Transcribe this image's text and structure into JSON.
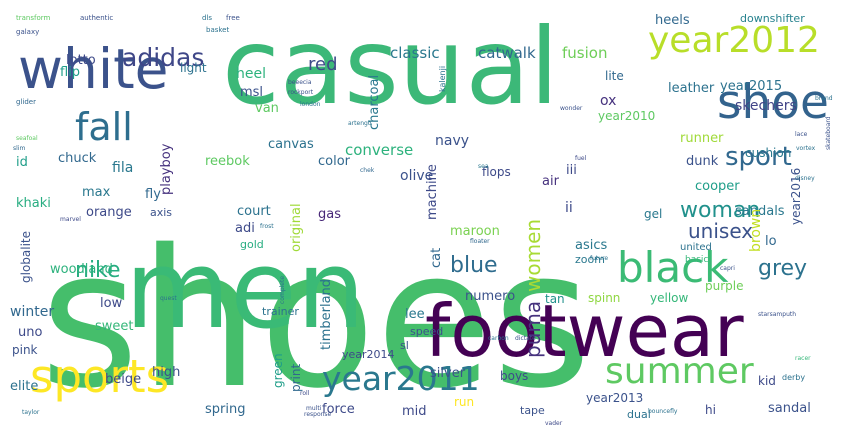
{
  "palette": {
    "background": "#ffffff",
    "dark_purple": "#440154",
    "indigo": "#3b528b",
    "blue": "#31688e",
    "teal": "#21918c",
    "green": "#35b779",
    "lime": "#90d743",
    "light_green": "#5ec962",
    "yellow": "#fde725"
  },
  "words": [
    {
      "text": "shoes",
      "color": "#45be6b"
    },
    {
      "text": "casual",
      "color": "#3cb878"
    },
    {
      "text": "men",
      "color": "#3aba76"
    },
    {
      "text": "footwear",
      "color": "#440154"
    },
    {
      "text": "white",
      "color": "#3b528b"
    },
    {
      "text": "shoe",
      "color": "#33638d"
    },
    {
      "text": "sports",
      "color": "#fde725"
    },
    {
      "text": "black",
      "color": "#3bbb75"
    },
    {
      "text": "fall",
      "color": "#2e6e8e"
    },
    {
      "text": "year2012",
      "color": "#b8de29"
    },
    {
      "text": "summer",
      "color": "#5ec962"
    },
    {
      "text": "year2011",
      "color": "#2a788e"
    },
    {
      "text": "sport",
      "color": "#31688e"
    },
    {
      "text": "adidas",
      "color": "#3f4788"
    },
    {
      "text": "woman",
      "color": "#21918c"
    },
    {
      "text": "grey",
      "color": "#2c728e"
    },
    {
      "text": "blue",
      "color": "#2f6c8e"
    },
    {
      "text": "nike",
      "color": "#27ad81"
    },
    {
      "text": "unisex",
      "color": "#3b528b"
    },
    {
      "text": "women",
      "color": "#a8db34"
    },
    {
      "text": "puma",
      "color": "#46327e"
    },
    {
      "text": "red",
      "color": "#3e4a89"
    },
    {
      "text": "classic",
      "color": "#2a788e"
    },
    {
      "text": "catwalk",
      "color": "#31688e"
    },
    {
      "text": "fusion",
      "color": "#6ece58"
    },
    {
      "text": "heels",
      "color": "#31688e"
    },
    {
      "text": "downshifter",
      "color": "#26828e"
    },
    {
      "text": "heel",
      "color": "#2db27d"
    },
    {
      "text": "lotto",
      "color": "#3e4a89"
    },
    {
      "text": "flip",
      "color": "#1f9e89"
    },
    {
      "text": "msl",
      "color": "#3b528b"
    },
    {
      "text": "light",
      "color": "#2c728e"
    },
    {
      "text": "lite",
      "color": "#31688e"
    },
    {
      "text": "ox",
      "color": "#46327e"
    },
    {
      "text": "leather",
      "color": "#2c728e"
    },
    {
      "text": "skechers",
      "color": "#414487"
    },
    {
      "text": "runner",
      "color": "#a0da39"
    },
    {
      "text": "year2015",
      "color": "#2c728e"
    },
    {
      "text": "van",
      "color": "#5ec962"
    },
    {
      "text": "max",
      "color": "#2a788e"
    },
    {
      "text": "fly",
      "color": "#31688e"
    },
    {
      "text": "converse",
      "color": "#2db27d"
    },
    {
      "text": "navy",
      "color": "#3b528b"
    },
    {
      "text": "reebok",
      "color": "#5ec962"
    },
    {
      "text": "canvas",
      "color": "#2c728e"
    },
    {
      "text": "charcoal",
      "color": "#2a788e"
    },
    {
      "text": "olive",
      "color": "#3b528b"
    },
    {
      "text": "year2010",
      "color": "#5ec962"
    },
    {
      "text": "air",
      "color": "#46327e"
    },
    {
      "text": "iii",
      "color": "#3e4a89"
    },
    {
      "text": "dunk",
      "color": "#3b528b"
    },
    {
      "text": "cushion",
      "color": "#2a788e"
    },
    {
      "text": "chuck",
      "color": "#31688e"
    },
    {
      "text": "fila",
      "color": "#2a788e"
    },
    {
      "text": "playboy",
      "color": "#46327e"
    },
    {
      "text": "color",
      "color": "#31688e"
    },
    {
      "text": "machine",
      "color": "#3e4a89"
    },
    {
      "text": "cooper",
      "color": "#1f9e89"
    },
    {
      "text": "sandals",
      "color": "#2a788e"
    },
    {
      "text": "year2016",
      "color": "#3b528b"
    },
    {
      "text": "id",
      "color": "#1f9e89"
    },
    {
      "text": "khaki",
      "color": "#27ad81"
    },
    {
      "text": "gas",
      "color": "#482878"
    },
    {
      "text": "maroon",
      "color": "#7ad151"
    },
    {
      "text": "gel",
      "color": "#2a788e"
    },
    {
      "text": "ii",
      "color": "#3e4a89"
    },
    {
      "text": "orange",
      "color": "#3e4a89"
    },
    {
      "text": "axis",
      "color": "#3b528b"
    },
    {
      "text": "court",
      "color": "#2c728e"
    },
    {
      "text": "original",
      "color": "#a0da39"
    },
    {
      "text": "asics",
      "color": "#2a788e"
    },
    {
      "text": "brown",
      "color": "#c2df23"
    },
    {
      "text": "lo",
      "color": "#31688e"
    },
    {
      "text": "adi",
      "color": "#3e4a89"
    },
    {
      "text": "gold",
      "color": "#27ad81"
    },
    {
      "text": "cat",
      "color": "#31688e"
    },
    {
      "text": "globalite",
      "color": "#3b528b"
    },
    {
      "text": "woodland",
      "color": "#2db27d"
    },
    {
      "text": "zoom",
      "color": "#2a788e"
    },
    {
      "text": "tan",
      "color": "#21918c"
    },
    {
      "text": "numero",
      "color": "#3b528b"
    },
    {
      "text": "purple",
      "color": "#6ece58"
    },
    {
      "text": "low",
      "color": "#3e4a89"
    },
    {
      "text": "winter",
      "color": "#31688e"
    },
    {
      "text": "uno",
      "color": "#3e4a89"
    },
    {
      "text": "timberland",
      "color": "#2c728e"
    },
    {
      "text": "spinn",
      "color": "#90d743"
    },
    {
      "text": "yellow",
      "color": "#35b779"
    },
    {
      "text": "lee",
      "color": "#2a788e"
    },
    {
      "text": "trainer",
      "color": "#2c728e"
    },
    {
      "text": "sweet",
      "color": "#35b779"
    },
    {
      "text": "pink",
      "color": "#3b528b"
    },
    {
      "text": "speed",
      "color": "#3b528b"
    },
    {
      "text": "green",
      "color": "#1f9e89"
    },
    {
      "text": "year2014",
      "color": "#3e4a89"
    },
    {
      "text": "boys",
      "color": "#3e4a89"
    },
    {
      "text": "silver",
      "color": "#3b528b"
    },
    {
      "text": "elite",
      "color": "#2c728e"
    },
    {
      "text": "beige",
      "color": "#3e4a89"
    },
    {
      "text": "high",
      "color": "#3b528b"
    },
    {
      "text": "print",
      "color": "#31688e"
    },
    {
      "text": "spring",
      "color": "#31688e"
    },
    {
      "text": "force",
      "color": "#3e4a89"
    },
    {
      "text": "mid",
      "color": "#3e4a89"
    },
    {
      "text": "run",
      "color": "#fde725"
    },
    {
      "text": "tape",
      "color": "#3b528b"
    },
    {
      "text": "year2013",
      "color": "#3b528b"
    },
    {
      "text": "hi",
      "color": "#3e4a89"
    },
    {
      "text": "kid",
      "color": "#3e4a89"
    },
    {
      "text": "sandal",
      "color": "#3b528b"
    },
    {
      "text": "dual",
      "color": "#2c728e"
    },
    {
      "text": "united",
      "color": "#2c728e"
    },
    {
      "text": "basic",
      "color": "#35b779"
    },
    {
      "text": "sl",
      "color": "#3b528b"
    },
    {
      "text": "transform",
      "color": "#5ec962"
    },
    {
      "text": "authentic",
      "color": "#3b528b"
    },
    {
      "text": "galaxy",
      "color": "#3b528b"
    },
    {
      "text": "glider",
      "color": "#31688e"
    },
    {
      "text": "dls",
      "color": "#2c728e"
    },
    {
      "text": "free",
      "color": "#3b528b"
    },
    {
      "text": "basket",
      "color": "#2c728e"
    },
    {
      "text": "kalenji",
      "color": "#2c728e"
    },
    {
      "text": "beeecia",
      "color": "#3b528b"
    },
    {
      "text": "rockport",
      "color": "#3b528b"
    },
    {
      "text": "flops",
      "color": "#3e4a89"
    },
    {
      "text": "sea",
      "color": "#2a788e"
    },
    {
      "text": "fuel",
      "color": "#3e4a89"
    },
    {
      "text": "future",
      "color": "#2c728e"
    },
    {
      "text": "carbon",
      "color": "#2c728e"
    },
    {
      "text": "capri",
      "color": "#3b528b"
    },
    {
      "text": "derby",
      "color": "#2c728e"
    },
    {
      "text": "racer",
      "color": "#35b779"
    },
    {
      "text": "response",
      "color": "#3b528b"
    },
    {
      "text": "taylor",
      "color": "#2c728e"
    },
    {
      "text": "starsamputh",
      "color": "#3b528b"
    },
    {
      "text": "bouncefly",
      "color": "#2c728e"
    },
    {
      "text": "disney",
      "color": "#2c728e"
    },
    {
      "text": "chek",
      "color": "#31688e"
    },
    {
      "text": "marvel",
      "color": "#3e4a89"
    },
    {
      "text": "frost",
      "color": "#2c728e"
    },
    {
      "text": "lace",
      "color": "#3b528b"
    },
    {
      "text": "brand",
      "color": "#2c728e"
    },
    {
      "text": "seafoal",
      "color": "#5ec962"
    },
    {
      "text": "vortex",
      "color": "#2c728e"
    },
    {
      "text": "skateboard",
      "color": "#3b528b"
    },
    {
      "text": "london",
      "color": "#2c728e"
    },
    {
      "text": "artengo",
      "color": "#2c728e"
    },
    {
      "text": "floater",
      "color": "#31688e"
    },
    {
      "text": "dictate",
      "color": "#3b528b"
    },
    {
      "text": "complete",
      "color": "#2c728e"
    },
    {
      "text": "quest",
      "color": "#2c728e"
    },
    {
      "text": "vader",
      "color": "#3e4a89"
    },
    {
      "text": "multi",
      "color": "#3b528b"
    },
    {
      "text": "roll",
      "color": "#3e4a89"
    },
    {
      "text": "slim",
      "color": "#31688e"
    },
    {
      "text": "wonder",
      "color": "#3b528b"
    }
  ]
}
